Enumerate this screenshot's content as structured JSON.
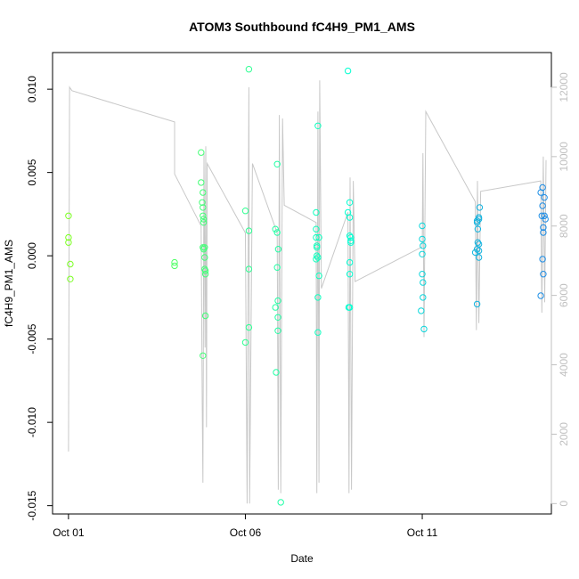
{
  "chart_data": {
    "type": "scatter",
    "title": "ATOM3 Southbound fC4H9_PM1_AMS",
    "xlabel": "Date",
    "ylabel": "fC4H9_PM1_AMS",
    "x_ticks": [
      "Oct 01",
      "Oct 06",
      "Oct 11"
    ],
    "x_range_days": [
      -0.45,
      13.65
    ],
    "y_ticks": [
      -0.015,
      -0.01,
      -0.005,
      0.0,
      0.005,
      0.01
    ],
    "y_tick_labels": [
      "-0.015",
      "-0.010",
      "-0.005",
      "0.000",
      "0.005",
      "0.010"
    ],
    "ylim": [
      -0.0155,
      0.0122
    ],
    "y2_ticks": [
      0,
      2000,
      4000,
      6000,
      8000,
      10000,
      12000
    ],
    "y2lim": [
      -300,
      13000
    ],
    "grid": false,
    "marker": "open-circle",
    "color_scale": {
      "from": "#7cff22",
      "via": "#00ffd5",
      "to": "#1e8ce6",
      "encodes": "time"
    },
    "altitude_color": "#c8c8c8",
    "points": [
      {
        "x": 0.0,
        "y": 0.0024
      },
      {
        "x": 0.0,
        "y": 0.0011
      },
      {
        "x": 0.0,
        "y": 0.0008
      },
      {
        "x": 0.05,
        "y": -0.0005
      },
      {
        "x": 0.05,
        "y": -0.0014
      },
      {
        "x": 3.0,
        "y": -0.0004
      },
      {
        "x": 3.0,
        "y": -0.0006
      },
      {
        "x": 3.75,
        "y": 0.0062
      },
      {
        "x": 3.75,
        "y": 0.0044
      },
      {
        "x": 3.78,
        "y": 0.0032
      },
      {
        "x": 3.8,
        "y": 0.0029
      },
      {
        "x": 3.8,
        "y": 0.0038
      },
      {
        "x": 3.8,
        "y": 0.0024
      },
      {
        "x": 3.82,
        "y": 0.0022
      },
      {
        "x": 3.82,
        "y": 0.002
      },
      {
        "x": 3.82,
        "y": 0.0004
      },
      {
        "x": 3.85,
        "y": 0.0005
      },
      {
        "x": 3.85,
        "y": -0.0001
      },
      {
        "x": 3.85,
        "y": -0.0008
      },
      {
        "x": 3.87,
        "y": -0.0009
      },
      {
        "x": 3.87,
        "y": -0.0011
      },
      {
        "x": 3.87,
        "y": -0.0036
      },
      {
        "x": 3.8,
        "y": -0.006
      },
      {
        "x": 3.8,
        "y": 0.0005
      },
      {
        "x": 5.0,
        "y": 0.0027
      },
      {
        "x": 5.0,
        "y": -0.0052
      },
      {
        "x": 5.1,
        "y": 0.0112
      },
      {
        "x": 5.1,
        "y": 0.0015
      },
      {
        "x": 5.1,
        "y": -0.0008
      },
      {
        "x": 5.1,
        "y": -0.0043
      },
      {
        "x": 5.85,
        "y": 0.0016
      },
      {
        "x": 5.85,
        "y": -0.0031
      },
      {
        "x": 5.87,
        "y": -0.007
      },
      {
        "x": 5.9,
        "y": 0.0055
      },
      {
        "x": 5.9,
        "y": 0.0014
      },
      {
        "x": 5.9,
        "y": -0.0007
      },
      {
        "x": 5.92,
        "y": -0.0027
      },
      {
        "x": 5.92,
        "y": -0.0037
      },
      {
        "x": 5.92,
        "y": -0.0045
      },
      {
        "x": 5.93,
        "y": 0.0004
      },
      {
        "x": 6.0,
        "y": -0.0148
      },
      {
        "x": 7.0,
        "y": 0.0026
      },
      {
        "x": 7.0,
        "y": 0.0016
      },
      {
        "x": 7.0,
        "y": 0.0011
      },
      {
        "x": 7.02,
        "y": 0.0006
      },
      {
        "x": 7.02,
        "y": 0.0005
      },
      {
        "x": 7.02,
        "y": 0.0
      },
      {
        "x": 7.05,
        "y": 0.0078
      },
      {
        "x": 7.05,
        "y": -0.0001
      },
      {
        "x": 7.05,
        "y": -0.0025
      },
      {
        "x": 7.08,
        "y": 0.0011
      },
      {
        "x": 7.08,
        "y": -0.0012
      },
      {
        "x": 7.05,
        "y": -0.0046
      },
      {
        "x": 7.0,
        "y": -0.0002
      },
      {
        "x": 7.9,
        "y": 0.0111
      },
      {
        "x": 7.9,
        "y": 0.0026
      },
      {
        "x": 7.95,
        "y": 0.0032
      },
      {
        "x": 7.95,
        "y": 0.0023
      },
      {
        "x": 7.95,
        "y": 0.0012
      },
      {
        "x": 7.98,
        "y": 0.0009
      },
      {
        "x": 7.98,
        "y": 0.0008
      },
      {
        "x": 7.98,
        "y": 0.0011
      },
      {
        "x": 7.95,
        "y": -0.0004
      },
      {
        "x": 7.95,
        "y": -0.0011
      },
      {
        "x": 7.95,
        "y": -0.0031
      },
      {
        "x": 7.92,
        "y": -0.0031
      },
      {
        "x": 10.0,
        "y": 0.0018
      },
      {
        "x": 10.0,
        "y": 0.001
      },
      {
        "x": 10.02,
        "y": 0.0006
      },
      {
        "x": 10.0,
        "y": 0.0001
      },
      {
        "x": 10.0,
        "y": -0.0011
      },
      {
        "x": 10.02,
        "y": -0.0016
      },
      {
        "x": 10.02,
        "y": -0.0025
      },
      {
        "x": 9.97,
        "y": -0.0033
      },
      {
        "x": 10.05,
        "y": -0.0044
      },
      {
        "x": 11.55,
        "y": 0.0021
      },
      {
        "x": 11.55,
        "y": 0.002
      },
      {
        "x": 11.6,
        "y": 0.0023
      },
      {
        "x": 11.6,
        "y": 0.0022
      },
      {
        "x": 11.62,
        "y": 0.0029
      },
      {
        "x": 11.57,
        "y": 0.0016
      },
      {
        "x": 11.57,
        "y": 0.0008
      },
      {
        "x": 11.6,
        "y": 0.0007
      },
      {
        "x": 11.55,
        "y": 0.0004
      },
      {
        "x": 11.6,
        "y": 0.0003
      },
      {
        "x": 11.6,
        "y": -0.0001
      },
      {
        "x": 11.55,
        "y": -0.0029
      },
      {
        "x": 11.5,
        "y": 0.0002
      },
      {
        "x": 13.35,
        "y": 0.0038
      },
      {
        "x": 13.4,
        "y": 0.0041
      },
      {
        "x": 13.45,
        "y": 0.0035
      },
      {
        "x": 13.4,
        "y": 0.003
      },
      {
        "x": 13.38,
        "y": 0.0024
      },
      {
        "x": 13.45,
        "y": 0.0024
      },
      {
        "x": 13.48,
        "y": 0.0022
      },
      {
        "x": 13.42,
        "y": 0.0017
      },
      {
        "x": 13.42,
        "y": 0.0014
      },
      {
        "x": 13.4,
        "y": -0.0002
      },
      {
        "x": 13.42,
        "y": -0.0011
      },
      {
        "x": 13.35,
        "y": -0.0024
      }
    ],
    "altitude_path": [
      [
        0.0,
        1500
      ],
      [
        0.03,
        12000
      ],
      [
        0.1,
        11900
      ],
      [
        3.0,
        11000
      ],
      [
        3.0,
        9500
      ],
      [
        3.75,
        8000
      ],
      [
        3.78,
        3000
      ],
      [
        3.8,
        600
      ],
      [
        3.83,
        10100
      ],
      [
        3.86,
        4500
      ],
      [
        3.88,
        10300
      ],
      [
        3.9,
        2200
      ],
      [
        3.92,
        9800
      ],
      [
        5.0,
        7800
      ],
      [
        5.05,
        0
      ],
      [
        5.1,
        12000
      ],
      [
        5.12,
        0
      ],
      [
        5.2,
        9800
      ],
      [
        5.9,
        7800
      ],
      [
        5.93,
        400
      ],
      [
        5.96,
        11200
      ],
      [
        6.0,
        300
      ],
      [
        6.05,
        11100
      ],
      [
        6.1,
        8600
      ],
      [
        7.0,
        8100
      ],
      [
        7.02,
        300
      ],
      [
        7.05,
        11300
      ],
      [
        7.08,
        600
      ],
      [
        7.1,
        12200
      ],
      [
        7.15,
        6200
      ],
      [
        7.9,
        8400
      ],
      [
        7.93,
        300
      ],
      [
        7.96,
        9400
      ],
      [
        8.0,
        400
      ],
      [
        8.05,
        9300
      ],
      [
        8.1,
        6400
      ],
      [
        10.0,
        7400
      ],
      [
        10.02,
        10100
      ],
      [
        10.05,
        4800
      ],
      [
        10.1,
        11300
      ],
      [
        11.5,
        8700
      ],
      [
        11.53,
        5000
      ],
      [
        11.56,
        9300
      ],
      [
        11.6,
        5200
      ],
      [
        11.65,
        9000
      ],
      [
        13.35,
        9300
      ],
      [
        13.38,
        5500
      ],
      [
        13.42,
        10000
      ],
      [
        13.46,
        5800
      ],
      [
        13.5,
        9900
      ]
    ]
  }
}
